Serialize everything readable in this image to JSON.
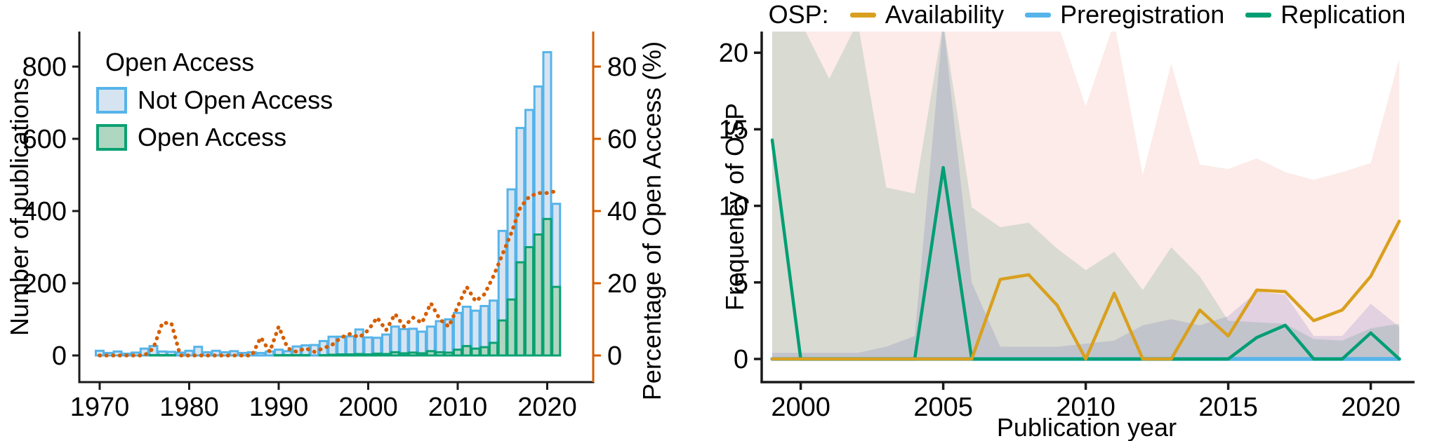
{
  "figure": {
    "background": "#ffffff",
    "text_color": "#000000",
    "axis_color": "#1a1a1a"
  },
  "chart_data": [
    {
      "type": "bar",
      "title": "",
      "xlabel": "",
      "ylabel": "Number of publications",
      "ylabel_right": "Percentage of Open Access (%)",
      "legend_title": "Open Access",
      "right_axis_color": "#d55e00",
      "grid": false,
      "ylim": [
        0,
        870
      ],
      "y2lim": [
        0,
        87
      ],
      "x_ticks": [
        1970,
        1980,
        1990,
        2000,
        2010,
        2020
      ],
      "y_ticks": [
        0,
        200,
        400,
        600,
        800
      ],
      "y2_ticks": [
        0,
        20,
        40,
        60,
        80
      ],
      "years": [
        1970,
        1971,
        1972,
        1973,
        1974,
        1975,
        1976,
        1977,
        1978,
        1979,
        1980,
        1981,
        1982,
        1983,
        1984,
        1985,
        1986,
        1987,
        1988,
        1989,
        1990,
        1991,
        1992,
        1993,
        1994,
        1995,
        1996,
        1997,
        1998,
        1999,
        2000,
        2001,
        2002,
        2003,
        2004,
        2005,
        2006,
        2007,
        2008,
        2009,
        2010,
        2011,
        2012,
        2013,
        2014,
        2015,
        2016,
        2017,
        2018,
        2019,
        2020,
        2021
      ],
      "series": [
        {
          "name": "Not Open Access",
          "role": "bar",
          "fill": "#d6e4f2",
          "stroke": "#56b4e9",
          "values": [
            13,
            7,
            11,
            5,
            8,
            19,
            26,
            11,
            10,
            8,
            13,
            24,
            9,
            13,
            9,
            12,
            7,
            9,
            7,
            11,
            16,
            12,
            25,
            28,
            29,
            40,
            52,
            52,
            53,
            72,
            50,
            49,
            58,
            80,
            73,
            74,
            66,
            80,
            95,
            100,
            118,
            135,
            124,
            137,
            152,
            345,
            460,
            630,
            680,
            745,
            840,
            420
          ]
        },
        {
          "name": "Open Access",
          "role": "bar",
          "fill": "#aed6c0",
          "stroke": "#0ba173",
          "values": [
            0,
            0,
            0,
            0,
            0,
            0,
            1,
            1,
            1,
            0,
            0,
            0,
            0,
            0,
            0,
            0,
            0,
            0,
            0,
            0,
            1,
            1,
            1,
            1,
            0,
            1,
            2,
            3,
            3,
            4,
            3,
            5,
            4,
            9,
            6,
            8,
            6,
            12,
            9,
            8,
            16,
            26,
            19,
            23,
            35,
            97,
            155,
            258,
            300,
            335,
            378,
            190
          ]
        },
        {
          "name": "Percentage of Open Access",
          "role": "dotted-line",
          "axis": "right",
          "color": "#d55e00",
          "values": [
            0,
            0,
            0,
            0,
            0,
            0,
            2,
            9,
            9,
            0,
            0,
            0,
            0,
            0,
            0,
            0,
            0,
            0,
            5,
            1,
            8,
            2,
            1,
            2,
            1,
            2,
            3,
            5,
            6,
            5,
            7,
            10.5,
            7,
            11.5,
            8,
            10.5,
            9,
            14.5,
            10,
            8,
            13.5,
            19,
            15,
            17,
            22,
            28,
            34,
            41,
            44,
            45,
            45,
            45.5
          ]
        }
      ]
    },
    {
      "type": "line",
      "title": "",
      "xlabel": "Publication year",
      "ylabel": "Frequency of OSP",
      "legend_title": "OSP:",
      "grid": false,
      "ylim": [
        0,
        21.5
      ],
      "x_ticks": [
        2000,
        2005,
        2010,
        2015,
        2020
      ],
      "y_ticks": [
        0,
        5,
        10,
        15,
        20
      ],
      "years": [
        1999,
        2000,
        2001,
        2002,
        2003,
        2004,
        2005,
        2006,
        2007,
        2008,
        2009,
        2010,
        2011,
        2012,
        2013,
        2014,
        2015,
        2016,
        2017,
        2018,
        2019,
        2020,
        2021
      ],
      "series": [
        {
          "name": "Availability",
          "color": "#d9a01e",
          "band_fill": "rgba(229,92,66,0.12)",
          "values": [
            0,
            0,
            0,
            0,
            0,
            0,
            0,
            0,
            5.2,
            5.5,
            3.5,
            0,
            4.3,
            0,
            0,
            3.2,
            1.5,
            4.5,
            4.4,
            2.5,
            3.2,
            5.4,
            9
          ],
          "ci_upper": [
            22,
            22,
            22,
            22,
            22,
            22,
            22,
            22,
            22,
            22,
            22,
            16.5,
            22,
            12,
            19.3,
            12.7,
            12.4,
            13.1,
            12.2,
            11.7,
            12.2,
            12.8,
            19.6
          ]
        },
        {
          "name": "Preregistration",
          "color": "#56b4e9",
          "band_fill": "rgba(95,85,190,0.17)",
          "values": [
            0,
            0,
            0,
            0,
            0,
            0,
            0,
            0,
            0,
            0,
            0,
            0,
            0,
            0,
            0,
            0,
            0,
            0,
            0,
            0,
            0,
            0,
            0
          ],
          "ci_upper": [
            0.4,
            0.4,
            0.4,
            0.4,
            0.8,
            1.5,
            22,
            5,
            0.8,
            0.8,
            0.8,
            1,
            1.2,
            2.2,
            2.6,
            2.2,
            2.8,
            4.4,
            4.2,
            1.5,
            1.5,
            3.6,
            2.1
          ]
        },
        {
          "name": "Replication",
          "color": "#009e73",
          "band_fill": "rgba(35,130,100,0.16)",
          "values": [
            14.3,
            0,
            0,
            0,
            0,
            0,
            12.5,
            0,
            0,
            0,
            0,
            0,
            0,
            0,
            0,
            0,
            0,
            1.4,
            2.2,
            0,
            0,
            1.7,
            0
          ],
          "ci_upper": [
            22,
            22,
            18.3,
            22,
            11.2,
            10.8,
            22,
            9.9,
            8.6,
            8.9,
            7.2,
            5.8,
            7,
            4.5,
            7.3,
            5.4,
            2.5,
            2.4,
            2.3,
            1.3,
            1.2,
            2,
            2.3
          ]
        }
      ]
    }
  ]
}
